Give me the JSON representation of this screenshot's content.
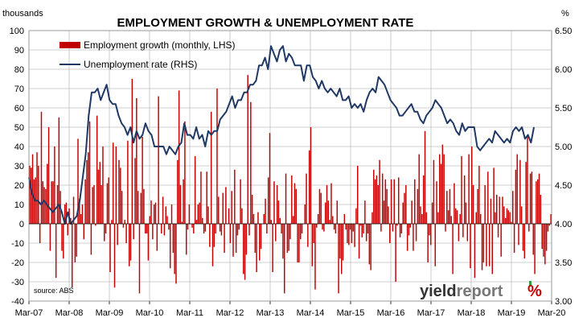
{
  "chart_data": {
    "type": "bar+line",
    "title": "EMPLOYMENT GROWTH & UNEMPLOYMENT RATE",
    "y_left_label": "thousands",
    "y_right_label": "%",
    "y_left_range": [
      -40,
      100
    ],
    "y_right_range": [
      3.0,
      6.5
    ],
    "y_left_ticks": [
      "100",
      "90",
      "80",
      "70",
      "60",
      "50",
      "40",
      "30",
      "20",
      "10",
      "0",
      "-10",
      "-20",
      "-30",
      "-40"
    ],
    "y_right_ticks": [
      "6.50",
      "6.00",
      "5.50",
      "5.00",
      "4.50",
      "4.00",
      "3.50",
      "3.00"
    ],
    "x_ticks": [
      "Mar-07",
      "Mar-08",
      "Mar-09",
      "Mar-10",
      "Mar-11",
      "Mar-12",
      "Mar-13",
      "Mar-14",
      "Mar-15",
      "Mar-16",
      "Mar-17",
      "Mar-18",
      "Mar-19",
      "Mar-20"
    ],
    "legend": "top-left",
    "series": [
      {
        "name": "Employment growth (monthly, LHS)",
        "kind": "bar",
        "axis": "left",
        "color": "#c00000",
        "values": [
          30,
          29,
          36,
          23,
          24,
          37,
          30,
          -10,
          58,
          22,
          19,
          18,
          31,
          50,
          -14,
          22,
          22,
          40,
          -28,
          20,
          55,
          17,
          -14,
          -18,
          10,
          11,
          -6,
          8,
          3,
          -33,
          14,
          -20,
          -17,
          44,
          13,
          5,
          10,
          -8,
          23,
          33,
          37,
          53,
          -16,
          19,
          20,
          -1,
          56,
          28,
          32,
          20,
          40,
          -9,
          -5,
          21,
          24,
          -25,
          2,
          42,
          -33,
          40,
          -11,
          33,
          29,
          17,
          -2,
          2,
          -10,
          43,
          -22,
          -19,
          75,
          -8,
          34,
          65,
          17,
          -36,
          16,
          45,
          18,
          -5,
          -5,
          -19,
          4,
          12,
          -8,
          10,
          11,
          -14,
          66,
          0,
          -5,
          14,
          -6,
          9,
          4,
          -3,
          -23,
          10,
          -15,
          -26,
          -31,
          33,
          69,
          20,
          1,
          23,
          53,
          -16,
          -3,
          10,
          0,
          -2,
          -5,
          35,
          2,
          10,
          11,
          27,
          3,
          -5,
          -4,
          27,
          9,
          -12,
          58,
          -22,
          -12,
          -5,
          70,
          14,
          -4,
          -6,
          16,
          -15,
          19,
          0,
          8,
          -10,
          17,
          -17,
          28,
          -15,
          -6,
          -3,
          23,
          8,
          -26,
          -29,
          -16,
          77,
          -6,
          63,
          15,
          5,
          -15,
          -25,
          6,
          -19,
          -13,
          0,
          5,
          13,
          -5,
          24,
          47,
          2,
          -25,
          22,
          -9,
          20,
          12,
          3,
          -5,
          -18,
          -36,
          26,
          -15,
          -14,
          -8,
          25,
          4,
          21,
          18,
          -20,
          -20,
          -8,
          -5,
          0,
          10,
          26,
          -12,
          38,
          50,
          -22,
          -10,
          -34,
          -2,
          5,
          18,
          16,
          -3,
          -4,
          11,
          20,
          12,
          2,
          21,
          4,
          -3,
          -5,
          12,
          -36,
          -18,
          -26,
          -19,
          5,
          -3,
          -10,
          -11,
          -3,
          -10,
          -4,
          -12,
          8,
          30,
          -18,
          -1,
          -7,
          -5,
          12,
          -9,
          -5,
          -21,
          -24,
          6,
          28,
          23,
          25,
          20,
          33,
          -4,
          26,
          12,
          23,
          18,
          9,
          -10,
          23,
          -4,
          23,
          -30,
          -1,
          24,
          -7,
          -5,
          11,
          16,
          20,
          -14,
          -6,
          -2,
          12,
          -14,
          23,
          -9,
          18,
          36,
          9,
          5,
          25,
          48,
          6,
          -20,
          -6,
          -11,
          11,
          33,
          -22,
          22,
          6,
          36,
          31,
          41,
          36,
          -4,
          17,
          7,
          18,
          4,
          -26,
          21,
          8,
          7,
          -9,
          5,
          35,
          -7,
          25,
          11,
          -9,
          36,
          -23,
          40,
          20,
          -28,
          6,
          18,
          30,
          5,
          -24,
          -20,
          20,
          -22,
          27,
          -22,
          13,
          -26,
          29,
          6,
          15,
          -7,
          14,
          -17,
          14,
          9,
          3,
          8,
          7,
          6,
          1,
          17,
          -15,
          28,
          36,
          -11,
          33,
          9,
          -14,
          -18,
          32,
          45,
          -4,
          26,
          27,
          -16,
          -26,
          22,
          23,
          26,
          15,
          -13,
          -17,
          -21,
          -14,
          -4,
          -1,
          5
        ]
      },
      {
        "name": "Unemployment rate (RHS)",
        "kind": "line",
        "axis": "right",
        "color": "#1f3864",
        "values": [
          4.6,
          4.4,
          4.3,
          4.3,
          4.25,
          4.3,
          4.25,
          4.2,
          4.15,
          4.2,
          4.25,
          4.15,
          4.0,
          4.15,
          4.0,
          4.05,
          4.1,
          4.3,
          4.6,
          4.9,
          5.4,
          5.7,
          5.7,
          5.75,
          5.6,
          5.7,
          5.8,
          5.6,
          5.55,
          5.55,
          5.4,
          5.3,
          5.25,
          5.15,
          5.25,
          5.05,
          5.2,
          5.1,
          5.15,
          5.3,
          5.2,
          5.15,
          5.0,
          5.0,
          5.0,
          5.0,
          4.9,
          5.0,
          4.95,
          4.9,
          5.0,
          5.05,
          5.3,
          5.15,
          5.15,
          5.1,
          5.25,
          5.1,
          5.15,
          5.0,
          5.2,
          5.15,
          5.2,
          5.2,
          5.35,
          5.4,
          5.45,
          5.55,
          5.65,
          5.5,
          5.6,
          5.6,
          5.7,
          5.7,
          5.8,
          5.8,
          5.85,
          6.05,
          6.05,
          6.15,
          6.0,
          6.3,
          6.2,
          6.1,
          6.25,
          6.3,
          6.1,
          6.2,
          6.15,
          6.05,
          6.05,
          6.05,
          5.85,
          6.05,
          6.05,
          5.9,
          5.85,
          5.75,
          5.85,
          5.75,
          5.7,
          5.75,
          5.7,
          5.65,
          5.75,
          5.6,
          5.6,
          5.65,
          5.5,
          5.55,
          5.5,
          5.55,
          5.45,
          5.6,
          5.7,
          5.75,
          5.7,
          5.9,
          5.85,
          5.8,
          5.7,
          5.6,
          5.55,
          5.5,
          5.4,
          5.4,
          5.45,
          5.5,
          5.55,
          5.45,
          5.45,
          5.35,
          5.3,
          5.4,
          5.45,
          5.5,
          5.6,
          5.55,
          5.5,
          5.4,
          5.3,
          5.35,
          5.3,
          5.2,
          5.15,
          5.3,
          5.2,
          5.25,
          5.25,
          5.25,
          5.0,
          4.95,
          5.0,
          5.05,
          5.1,
          5.05,
          5.2,
          5.15,
          5.1,
          5.05,
          5.1,
          5.05,
          5.2,
          5.25,
          5.2,
          5.25,
          5.1,
          5.15,
          5.05,
          5.25
        ]
      }
    ],
    "annotations": [
      "source: ABS"
    ]
  },
  "brand": {
    "text_dark": "yield",
    "text_light": "report",
    "symbol": "%",
    "color_dark": "#333333",
    "color_light": "#777777",
    "color_green": "#2e9e3e",
    "color_red": "#cc0000"
  },
  "colors": {
    "bar": "#c00000",
    "line": "#1f3864",
    "grid": "#bfbfbf"
  }
}
